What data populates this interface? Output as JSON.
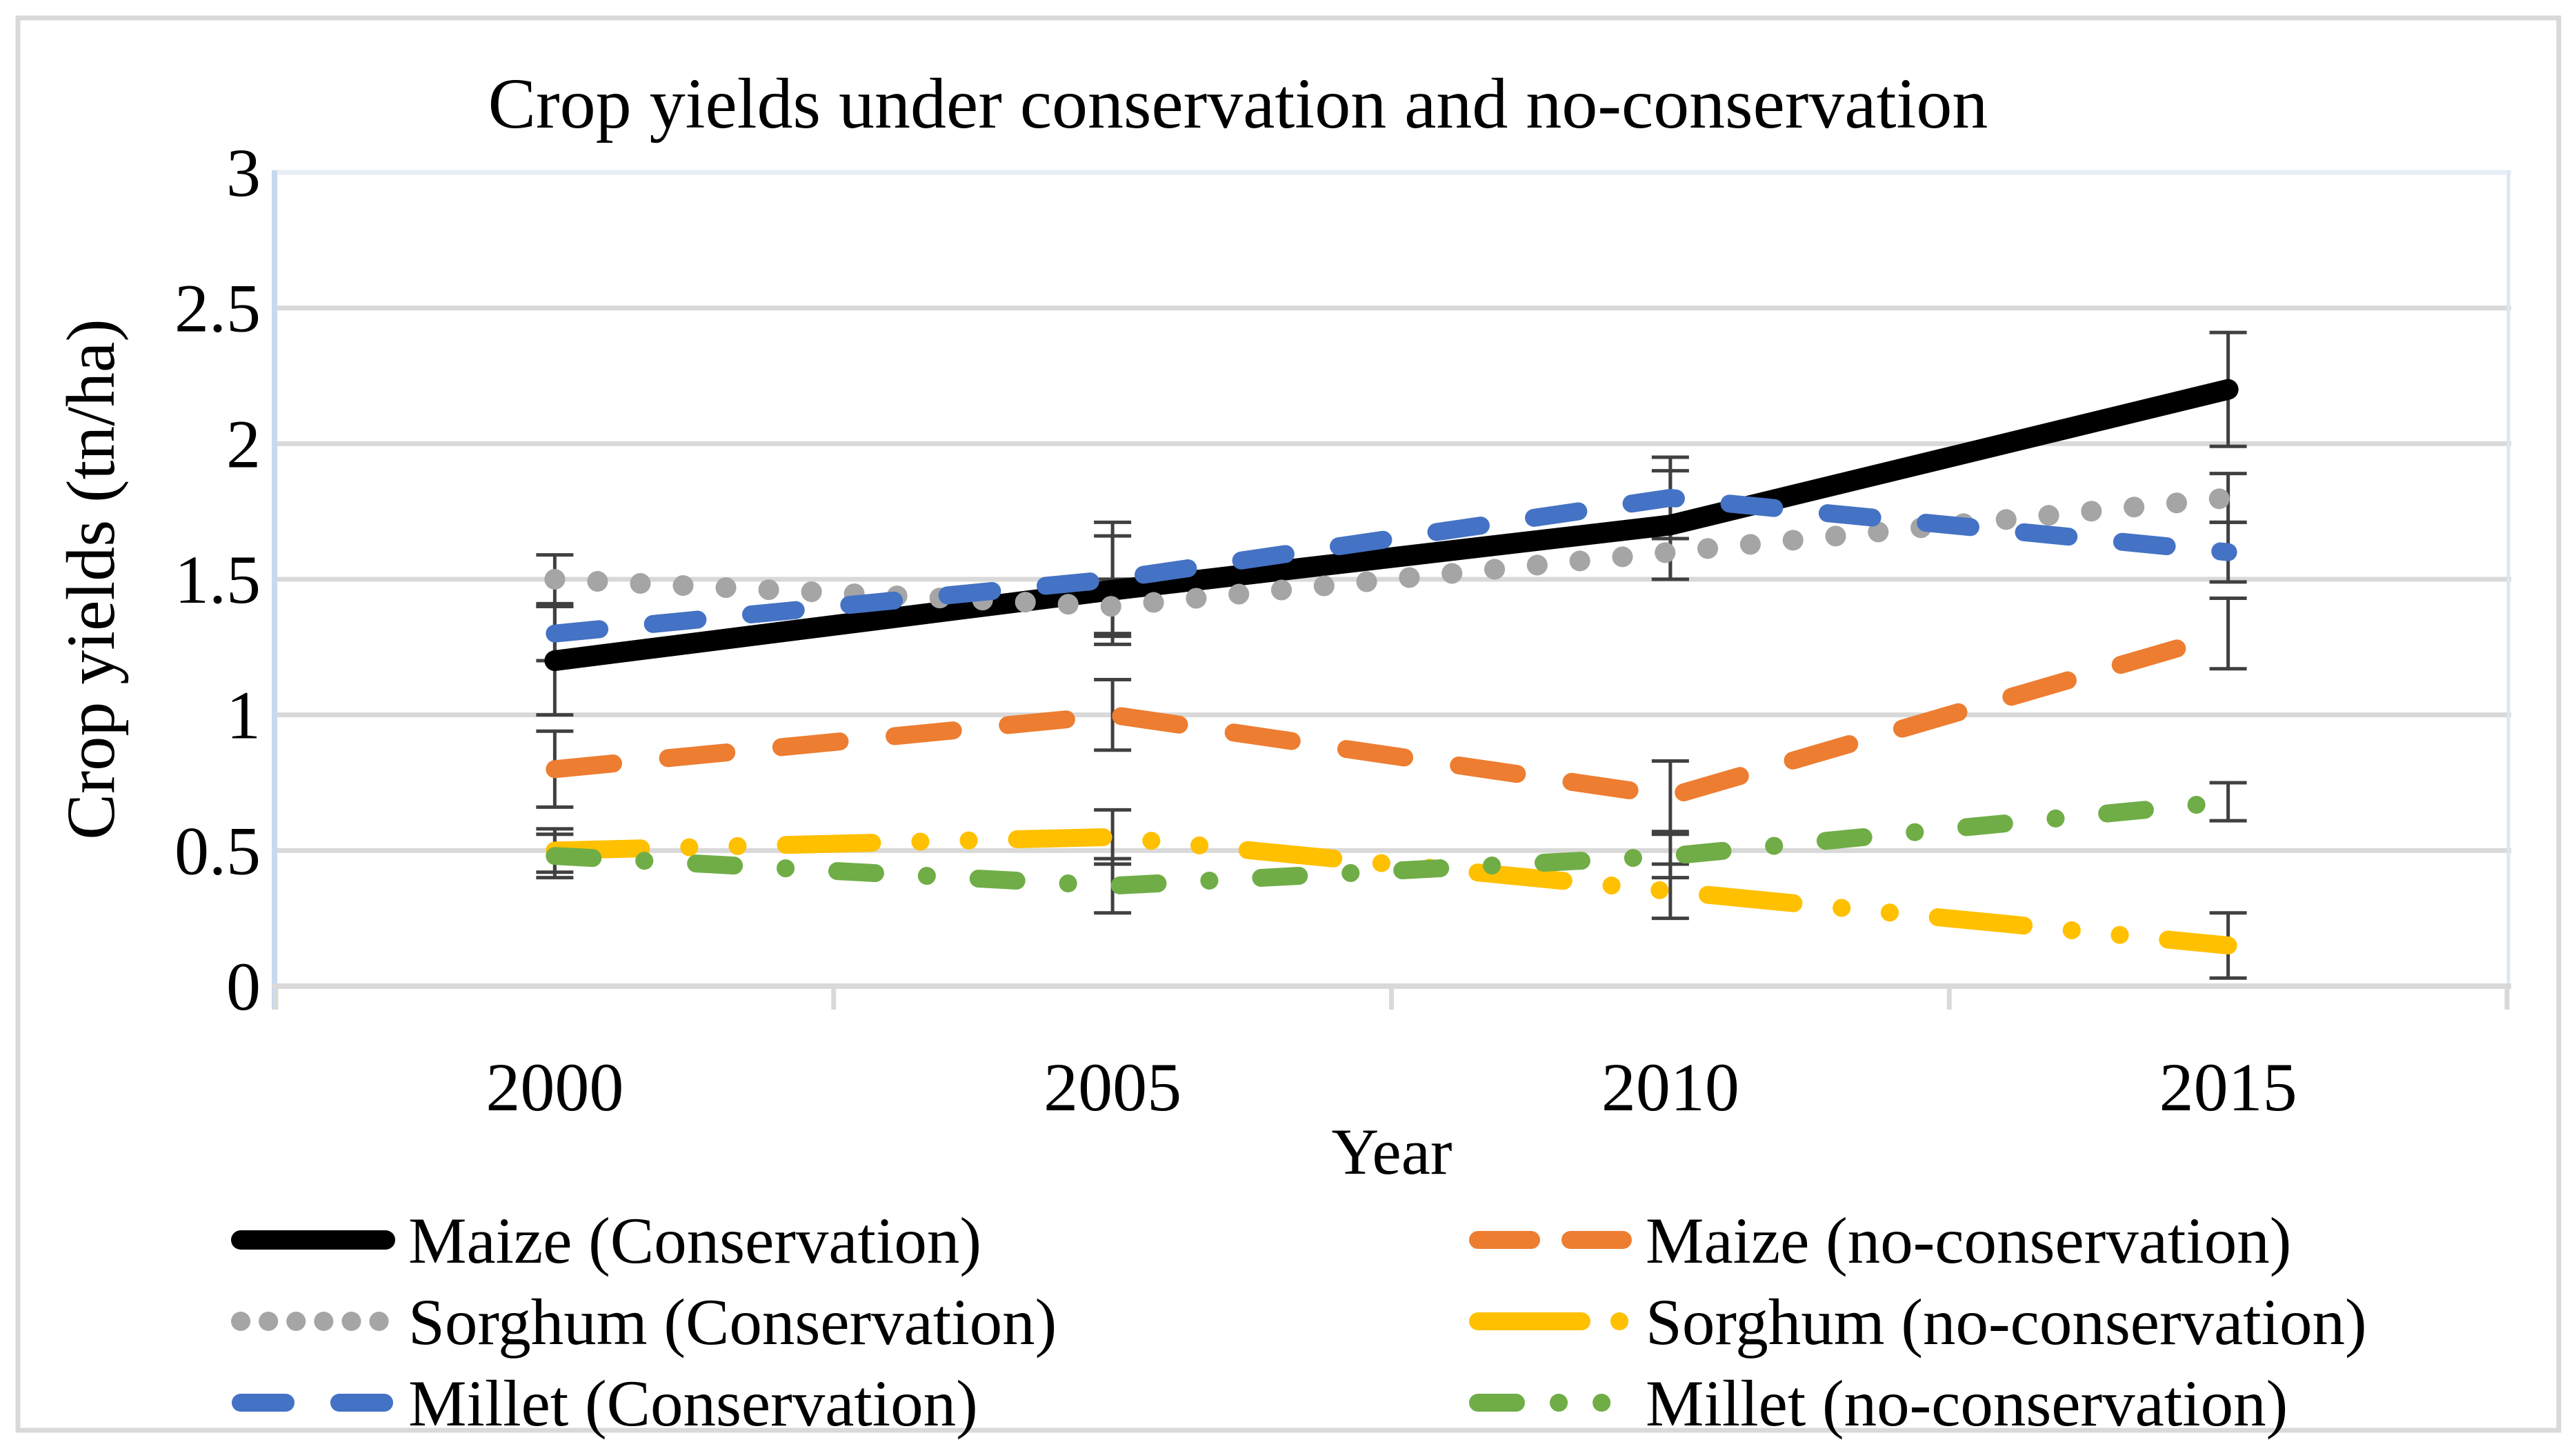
{
  "chart_data": {
    "type": "line",
    "title": "Crop yields under conservation and no-conservation",
    "xlabel": "Year",
    "ylabel": "Crop yields (tn/ha)",
    "x_categories": [
      "2000",
      "2005",
      "2010",
      "2015"
    ],
    "ylim": [
      0,
      3
    ],
    "ytick_step": 0.5,
    "yticks": [
      "0",
      "0.5",
      "1",
      "1.5",
      "2",
      "2.5",
      "3"
    ],
    "grid": true,
    "legend_position": "bottom-two-columns",
    "error_bars": true,
    "colors": {
      "grid": "#D9D9D9",
      "plot_border_left": "#C5D9F1",
      "plot_border_right": "#DDE7F3",
      "plot_border_top": "#E8EEF6",
      "figure_border": "#D9D9D9",
      "error_bar": "#404040",
      "text": "#000000"
    },
    "series": [
      {
        "name": "Maize (Conservation)",
        "color": "#000000",
        "style": "solid",
        "values": [
          1.2,
          1.46,
          1.7,
          2.2
        ],
        "errors": [
          0.2,
          0.2,
          0.2,
          0.21
        ]
      },
      {
        "name": "Sorghum (Conservation)",
        "color": "#A5A5A5",
        "style": "dot",
        "values": [
          1.5,
          1.4,
          1.6,
          1.8
        ],
        "errors": [
          0.09,
          0.1,
          0.1,
          0.09
        ]
      },
      {
        "name": "Millet (Conservation)",
        "color": "#4472C4",
        "style": "dash",
        "values": [
          1.3,
          1.5,
          1.8,
          1.6
        ],
        "errors": [
          0.1,
          0.21,
          0.15,
          0.11
        ]
      },
      {
        "name": "Maize (no-conservation)",
        "color": "#ED7D31",
        "style": "dash-long",
        "values": [
          0.8,
          1.0,
          0.7,
          1.3
        ],
        "errors": [
          0.14,
          0.13,
          0.13,
          0.13
        ]
      },
      {
        "name": "Sorghum (no-conservation)",
        "color": "#FFC000",
        "style": "long-dash-dot-dot",
        "values": [
          0.5,
          0.55,
          0.35,
          0.15
        ],
        "errors": [
          0.08,
          0.1,
          0.1,
          0.12
        ]
      },
      {
        "name": "Millet (no-conservation)",
        "color": "#70AD47",
        "style": "dash-dot",
        "values": [
          0.48,
          0.37,
          0.48,
          0.68
        ],
        "errors": [
          0.08,
          0.1,
          0.08,
          0.07
        ]
      }
    ],
    "legend": {
      "left_column_series": [
        0,
        1,
        2
      ],
      "right_column_series": [
        3,
        4,
        5
      ]
    }
  }
}
